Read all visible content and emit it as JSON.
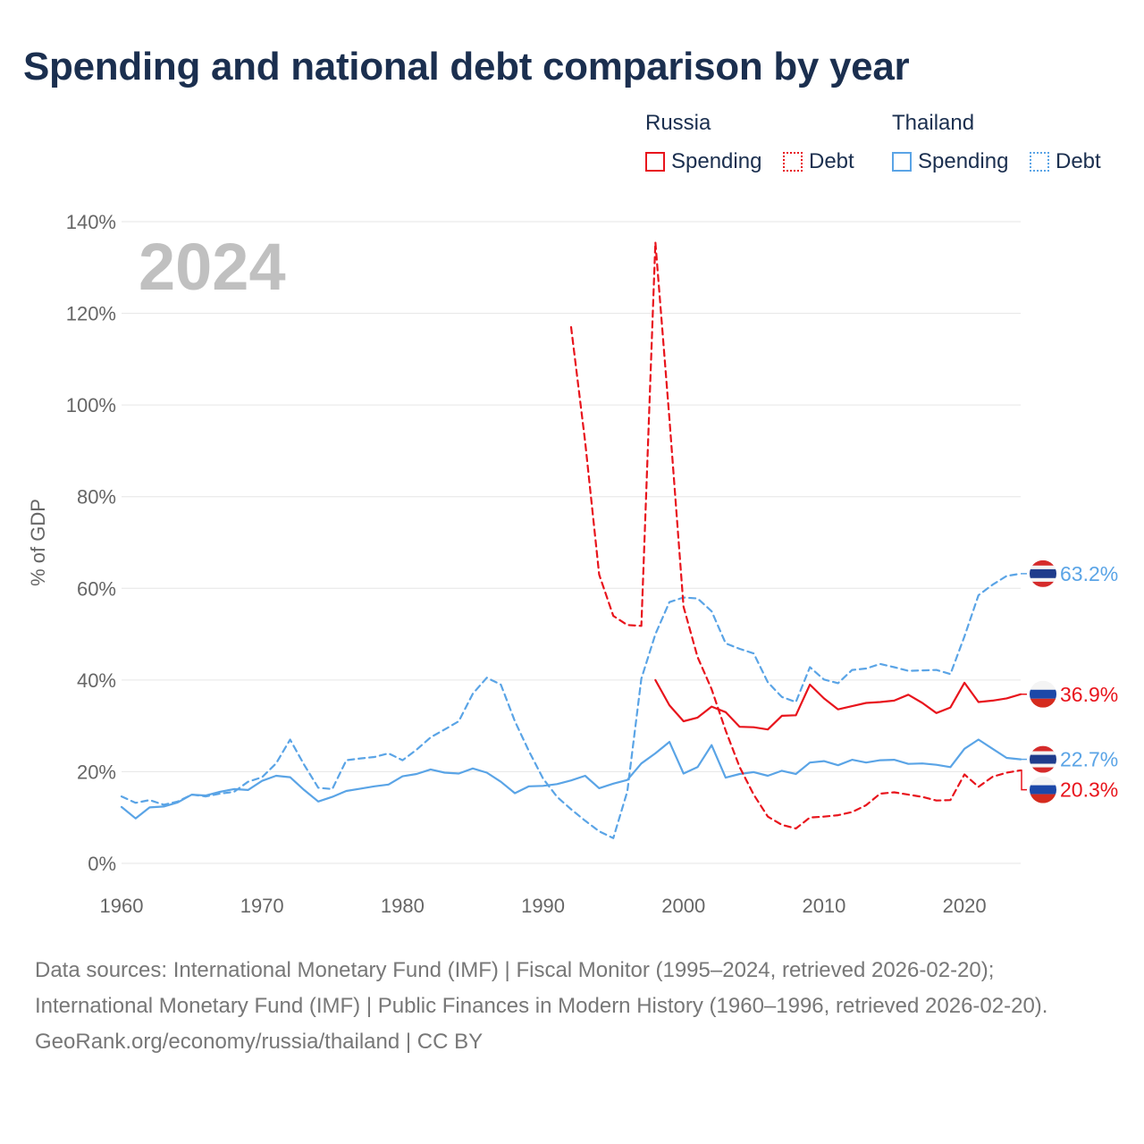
{
  "title": "Spending and national debt comparison by year",
  "legend": {
    "groups": [
      {
        "country": "Russia",
        "items": [
          {
            "label": "Spending",
            "style": "solid",
            "color": "#e8141c"
          },
          {
            "label": "Debt",
            "style": "dotted",
            "color": "#e8141c"
          }
        ]
      },
      {
        "country": "Thailand",
        "items": [
          {
            "label": "Spending",
            "style": "solid",
            "color": "#5aa4e6"
          },
          {
            "label": "Debt",
            "style": "dotted",
            "color": "#5aa4e6"
          }
        ]
      }
    ]
  },
  "colors": {
    "russia": "#e8141c",
    "thailand": "#5aa4e6",
    "grid": "#e6e6e6",
    "axis_text": "#666666",
    "year_label": "#c0c0c0"
  },
  "chart_data": {
    "type": "line",
    "title": "Spending and national debt comparison by year",
    "ylabel": "% of GDP",
    "xlabel": "",
    "xlim": [
      1960,
      2024
    ],
    "ylim": [
      0,
      140
    ],
    "x_ticks": [
      1960,
      1970,
      1980,
      1990,
      2000,
      2010,
      2020
    ],
    "y_ticks": [
      0,
      20,
      40,
      60,
      80,
      100,
      120,
      140
    ],
    "y_tick_labels": [
      "0%",
      "20%",
      "40%",
      "60%",
      "80%",
      "100%",
      "120%",
      "140%"
    ],
    "year_label": "2024",
    "series": [
      {
        "name": "Russia Spending",
        "country": "Russia",
        "style": "solid",
        "color": "#e8141c",
        "x": [
          1998,
          1999,
          2000,
          2001,
          2002,
          2003,
          2004,
          2005,
          2006,
          2007,
          2008,
          2009,
          2010,
          2011,
          2012,
          2013,
          2014,
          2015,
          2016,
          2017,
          2018,
          2019,
          2020,
          2021,
          2022,
          2023,
          2024
        ],
        "values": [
          40,
          34.5,
          31,
          31.8,
          34.2,
          33,
          29.8,
          29.7,
          29.2,
          32.2,
          32.3,
          39,
          36,
          33.6,
          34.3,
          35,
          35.2,
          35.5,
          36.8,
          35,
          32.8,
          34,
          39.4,
          35.2,
          35.5,
          36,
          36.9
        ],
        "end_label": "36.9%"
      },
      {
        "name": "Russia Debt",
        "country": "Russia",
        "style": "dotted",
        "color": "#e8141c",
        "x": [
          1992,
          1993,
          1994,
          1995,
          1996,
          1997,
          1998,
          1999,
          2000,
          2001,
          2002,
          2003,
          2004,
          2005,
          2006,
          2007,
          2008,
          2009,
          2010,
          2011,
          2012,
          2013,
          2014,
          2015,
          2016,
          2017,
          2018,
          2019,
          2020,
          2021,
          2022,
          2023,
          2024
        ],
        "values": [
          117,
          92,
          63,
          54,
          52,
          51.8,
          135.5,
          97,
          56,
          45,
          38,
          29,
          21,
          15,
          10.2,
          8.4,
          7.6,
          10,
          10.2,
          10.5,
          11.2,
          12.7,
          15.2,
          15.5,
          15,
          14.5,
          13.7,
          13.8,
          19.4,
          16.7,
          18.9,
          19.8,
          20.3
        ],
        "end_label": "20.3%"
      },
      {
        "name": "Thailand Spending",
        "country": "Thailand",
        "style": "solid",
        "color": "#5aa4e6",
        "x": [
          1960,
          1961,
          1962,
          1963,
          1964,
          1965,
          1966,
          1967,
          1968,
          1969,
          1970,
          1971,
          1972,
          1973,
          1974,
          1975,
          1976,
          1977,
          1978,
          1979,
          1980,
          1981,
          1982,
          1983,
          1984,
          1985,
          1986,
          1987,
          1988,
          1989,
          1990,
          1991,
          1992,
          1993,
          1994,
          1995,
          1996,
          1997,
          1998,
          1999,
          2000,
          2001,
          2002,
          2003,
          2004,
          2005,
          2006,
          2007,
          2008,
          2009,
          2010,
          2011,
          2012,
          2013,
          2014,
          2015,
          2016,
          2017,
          2018,
          2019,
          2020,
          2021,
          2022,
          2023,
          2024
        ],
        "values": [
          12.3,
          9.8,
          12.2,
          12.4,
          13.3,
          15,
          14.8,
          15.6,
          16.2,
          16,
          18,
          19.1,
          18.8,
          16,
          13.5,
          14.5,
          15.8,
          16.3,
          16.8,
          17.2,
          19,
          19.5,
          20.5,
          19.8,
          19.6,
          20.7,
          19.8,
          17.8,
          15.3,
          16.8,
          16.9,
          17.3,
          18.1,
          19.1,
          16.4,
          17.4,
          18.2,
          21.8,
          24,
          26.5,
          19.6,
          21,
          25.8,
          18.7,
          19.5,
          19.9,
          19.1,
          20.2,
          19.5,
          22,
          22.3,
          21.4,
          22.6,
          22,
          22.5,
          22.6,
          21.7,
          21.8,
          21.5,
          21,
          25,
          27,
          25,
          23,
          22.7
        ],
        "end_label": "22.7%"
      },
      {
        "name": "Thailand Debt",
        "country": "Thailand",
        "style": "dotted",
        "color": "#5aa4e6",
        "x": [
          1960,
          1961,
          1962,
          1963,
          1964,
          1965,
          1966,
          1967,
          1968,
          1969,
          1970,
          1971,
          1972,
          1973,
          1974,
          1975,
          1976,
          1977,
          1978,
          1979,
          1980,
          1981,
          1982,
          1983,
          1984,
          1985,
          1986,
          1987,
          1988,
          1989,
          1990,
          1991,
          1992,
          1993,
          1994,
          1995,
          1996,
          1997,
          1998,
          1999,
          2000,
          2001,
          2002,
          2003,
          2004,
          2005,
          2006,
          2007,
          2008,
          2009,
          2010,
          2011,
          2012,
          2013,
          2014,
          2015,
          2016,
          2017,
          2018,
          2019,
          2020,
          2021,
          2022,
          2023,
          2024
        ],
        "values": [
          14.6,
          13.2,
          13.8,
          12.8,
          13.5,
          15,
          14.6,
          15.2,
          15.6,
          17.8,
          18.8,
          21.8,
          27,
          21.5,
          16.5,
          16.2,
          22.5,
          22.9,
          23.2,
          24,
          22.5,
          24.8,
          27.5,
          29.2,
          31,
          37,
          40.5,
          39,
          31,
          24.5,
          18.5,
          14.5,
          11.8,
          9.3,
          7,
          5.5,
          15.7,
          40.3,
          50,
          57,
          58,
          57.8,
          55,
          48,
          46.8,
          45.8,
          39.5,
          36.3,
          35.2,
          42.8,
          40.1,
          39.3,
          42.2,
          42.5,
          43.5,
          42.8,
          42,
          42.1,
          42.2,
          41.3,
          49.5,
          58.5,
          60.8,
          62.7,
          63.2
        ],
        "end_label": "63.2%"
      }
    ],
    "annotations": [
      "63.2%",
      "36.9%",
      "22.7%",
      "20.3%"
    ]
  },
  "footer": {
    "sources": "Data sources: International Monetary Fund (IMF) | Fiscal Monitor (1995–2024, retrieved 2026-02-20); International Monetary Fund (IMF) | Public Finances in Modern History (1960–1996, retrieved 2026-02-20).",
    "credit": "GeoRank.org/economy/russia/thailand | CC BY"
  }
}
